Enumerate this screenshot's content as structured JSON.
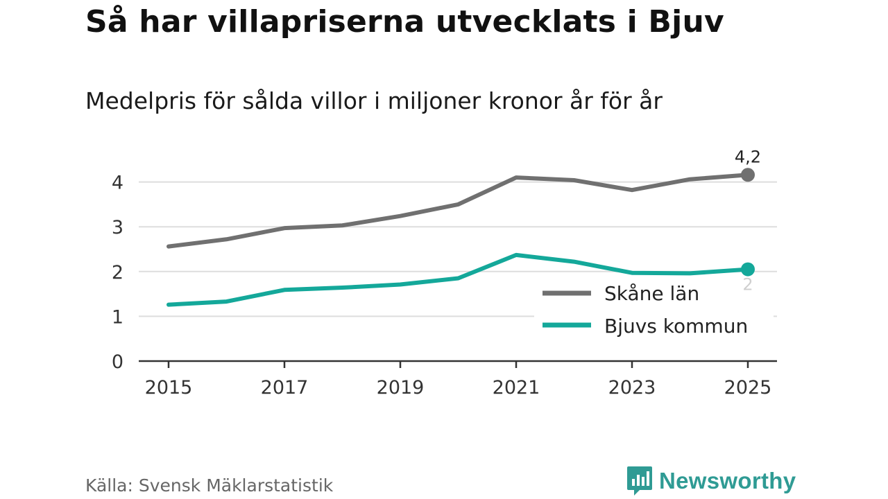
{
  "header": {
    "title": "Så har villapriserna utvecklats i Bjuv",
    "subtitle": "Medelpris för sålda villor i miljoner kronor år för år"
  },
  "footer": {
    "source": "Källa: Svensk Mäklarstatistik",
    "brand": "Newsworthy",
    "brand_icon": "bar-chart-speech-bubble-icon"
  },
  "colors": {
    "skane": "#707070",
    "bjuv": "#14a89a",
    "grid": "#dddddd",
    "axis": "#333333",
    "brand": "#2f9b94"
  },
  "chart_data": {
    "type": "line",
    "title": "Så har villapriserna utvecklats i Bjuv",
    "subtitle": "Medelpris för sålda villor i miljoner kronor år för år",
    "xlabel": "",
    "ylabel": "",
    "x": [
      2015,
      2016,
      2017,
      2018,
      2019,
      2020,
      2021,
      2022,
      2023,
      2024,
      2025
    ],
    "x_ticks": [
      "2015",
      "2017",
      "2019",
      "2021",
      "2023",
      "2025"
    ],
    "y_ticks": [
      "0",
      "1",
      "2",
      "3",
      "4"
    ],
    "ylim": [
      0,
      4.5
    ],
    "grid": true,
    "legend_position": "bottom-right",
    "series": [
      {
        "name": "Skåne län",
        "color": "#707070",
        "values": [
          2.56,
          2.72,
          2.97,
          3.03,
          3.24,
          3.5,
          4.1,
          4.04,
          3.82,
          4.06,
          4.16
        ],
        "end_label": "4,2"
      },
      {
        "name": "Bjuvs kommun",
        "color": "#14a89a",
        "values": [
          1.26,
          1.33,
          1.59,
          1.64,
          1.71,
          1.85,
          2.37,
          2.22,
          1.97,
          1.96,
          2.05
        ],
        "end_label": "2"
      }
    ]
  }
}
